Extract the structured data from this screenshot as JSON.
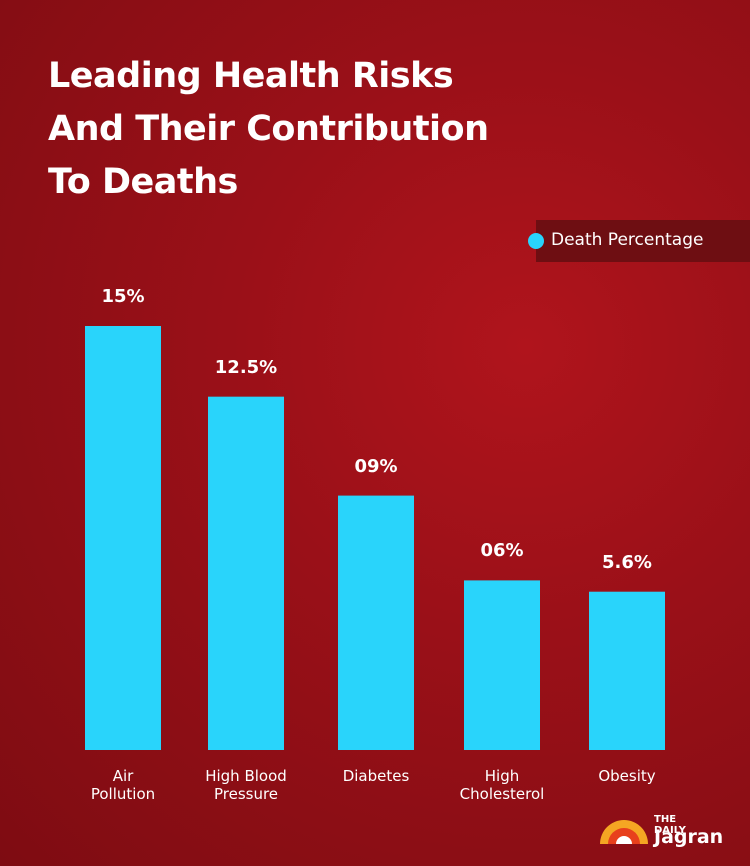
{
  "chart_data": {
    "type": "bar",
    "title": "Leading Health Risks\nAnd Their Contribution\nTo Deaths",
    "categories": [
      "Air\nPollution",
      "High Blood\nPressure",
      "Diabetes",
      "High\nCholesterol",
      "Obesity"
    ],
    "series": [
      {
        "name": "Death Percentage",
        "color": "#29d4fb",
        "values": [
          15,
          12.5,
          9,
          6,
          5.6
        ],
        "value_labels": [
          "15%",
          "12.5%",
          "09%",
          "06%",
          "5.6%"
        ]
      }
    ]
  },
  "logo": {
    "top": "THE DAILY",
    "bottom": "Jagran"
  }
}
